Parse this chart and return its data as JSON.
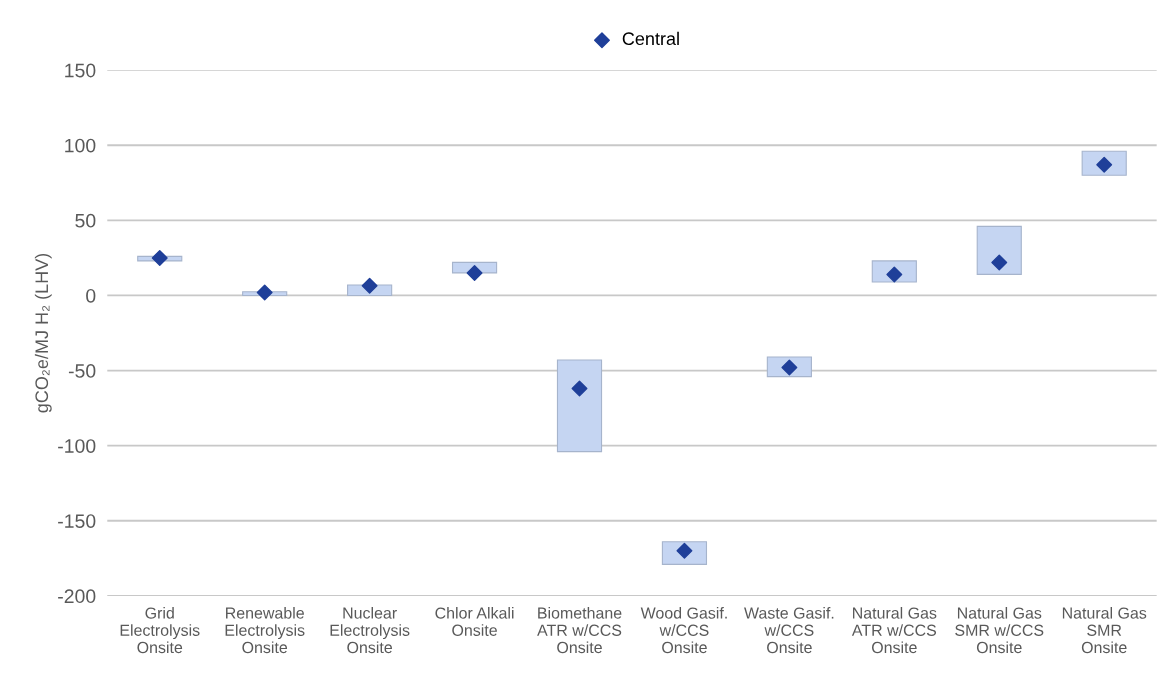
{
  "chart_data": {
    "type": "bar",
    "ylabel": "gCO₂e/MJ H₂ (LHV)",
    "categories": [
      "Grid\nElectrolysis\nOnsite",
      "Renewable\nElectrolysis\nOnsite",
      "Nuclear\nElectrolysis\nOnsite",
      "Chlor Alkali\nOnsite",
      "Biomethane\nATR w/CCS\nOnsite",
      "Wood Gasif.\nw/CCS\nOnsite",
      "Waste Gasif.\nw/CCS\nOnsite",
      "Natural Gas\nATR w/CCS\nOnsite",
      "Natural Gas\nSMR w/CCS\nOnsite",
      "Natural Gas\nSMR\nOnsite"
    ],
    "series": [
      {
        "color": "#c5d5f2",
        "base": [
          23,
          0,
          0,
          15,
          -104,
          -179,
          -54,
          9,
          14,
          80
        ],
        "values": [
          3,
          2.5,
          7,
          7,
          61,
          15,
          13,
          14,
          32,
          16
        ]
      },
      {
        "type": "scatter",
        "name": "Central",
        "color": "#1f3f99",
        "marker": "diamond",
        "values": [
          25,
          2,
          6.5,
          15,
          -62,
          -170,
          -48,
          14,
          22,
          87
        ]
      }
    ],
    "ylim": [
      -200,
      150
    ],
    "yticks": [
      -200,
      -150,
      -100,
      -50,
      0,
      50,
      100,
      150
    ],
    "grid": "y",
    "legend": "top"
  }
}
